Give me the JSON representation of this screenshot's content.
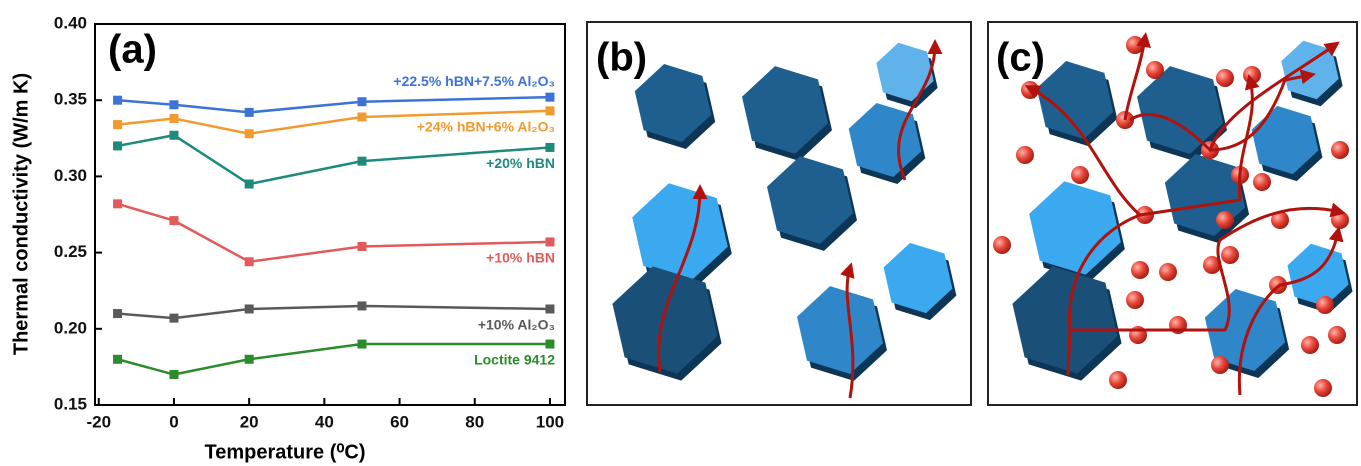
{
  "chart_data": {
    "type": "line",
    "title": "(a)",
    "x_label": "Temperature (⁰C)",
    "y_label": "Thermal conductivity (W/m K)",
    "x": [
      -15,
      0,
      20,
      50,
      100
    ],
    "xlim": [
      -21,
      104
    ],
    "xticks": [
      -20,
      0,
      20,
      40,
      60,
      80,
      100
    ],
    "ylim": [
      0.15,
      0.4
    ],
    "yticks": [
      0.15,
      {
        "value": 0.2,
        "label": "0.20"
      },
      0.25,
      {
        "value": 0.3,
        "label": "0.30"
      },
      0.35,
      {
        "value": 0.4,
        "label": "0.40"
      }
    ],
    "series": [
      {
        "name": "+22.5% hBN+7.5% Al₂O₃",
        "color": "#3d72d6",
        "values": [
          0.35,
          0.347,
          0.342,
          0.349,
          0.352
        ]
      },
      {
        "name": "+24% hBN+6% Al₂O₃",
        "color": "#f39a2e",
        "values": [
          0.334,
          0.338,
          0.328,
          0.339,
          0.343
        ]
      },
      {
        "name": "+20% hBN",
        "color": "#1e8a7c",
        "values": [
          0.32,
          0.327,
          0.295,
          0.31,
          0.319
        ]
      },
      {
        "name": "+10% hBN",
        "color": "#e35a5a",
        "values": [
          0.282,
          0.271,
          0.244,
          0.254,
          0.257
        ]
      },
      {
        "name": "+10% Al₂O₃",
        "color": "#5a5a5a",
        "values": [
          0.21,
          0.207,
          0.213,
          0.215,
          0.213
        ]
      },
      {
        "name": "Loctite 9412",
        "color": "#2a8c2a",
        "values": [
          0.18,
          0.17,
          0.18,
          0.19,
          0.19
        ]
      }
    ]
  },
  "panels": [
    {
      "label": "(b)"
    },
    {
      "label": "(c)"
    }
  ]
}
